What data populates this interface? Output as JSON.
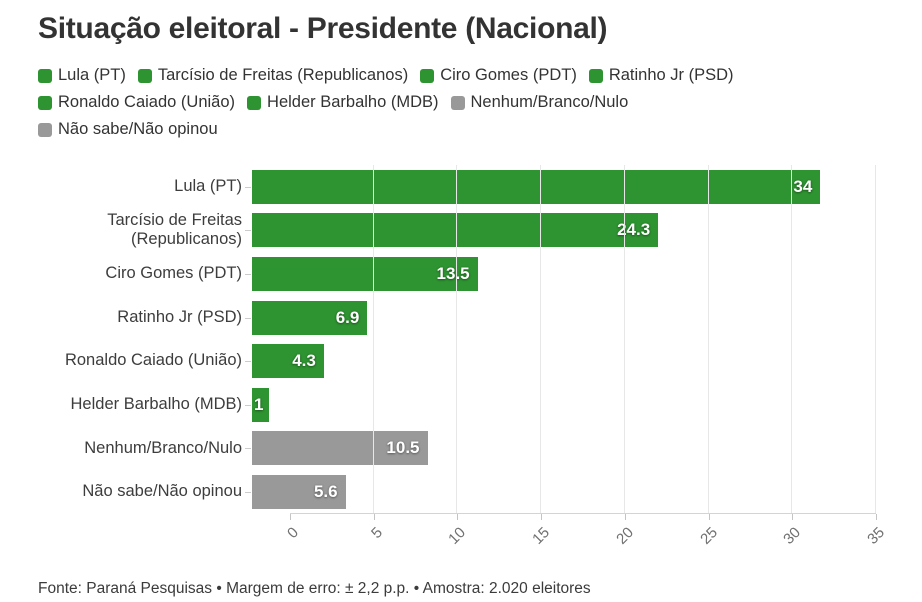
{
  "title": "Situação eleitoral - Presidente (Nacional)",
  "footer": "Fonte: Paraná Pesquisas • Margem de erro: ± 2,2 p.p. • Amostra: 2.020 eleitores",
  "colors": {
    "green": "#2e9331",
    "gray": "#999999"
  },
  "legend_rows": [
    [
      {
        "label": "Lula (PT)",
        "color": "green"
      },
      {
        "label": "Tarcísio de Freitas (Republicanos)",
        "color": "green"
      },
      {
        "label": "Ciro Gomes (PDT)",
        "color": "green"
      },
      {
        "label": "Ratinho Jr (PSD)",
        "color": "green"
      }
    ],
    [
      {
        "label": "Ronaldo Caiado (União)",
        "color": "green"
      },
      {
        "label": "Helder Barbalho (MDB)",
        "color": "green"
      },
      {
        "label": "Nenhum/Branco/Nulo",
        "color": "gray"
      }
    ],
    [
      {
        "label": "Não sabe/Não opinou",
        "color": "gray"
      }
    ]
  ],
  "chart_data": {
    "type": "bar",
    "orientation": "horizontal",
    "title": "Situação eleitoral - Presidente (Nacional)",
    "categories": [
      "Lula (PT)",
      "Tarcísio de Freitas (Republicanos)",
      "Ciro Gomes (PDT)",
      "Ratinho Jr (PSD)",
      "Ronaldo Caiado (União)",
      "Helder Barbalho (MDB)",
      "Nenhum/Branco/Nulo",
      "Não sabe/Não opinou"
    ],
    "values": [
      34,
      24.3,
      13.5,
      6.9,
      4.3,
      1,
      10.5,
      5.6
    ],
    "value_labels": [
      "34",
      "24.3",
      "13.5",
      "6.9",
      "4.3",
      "1",
      "10.5",
      "5.6"
    ],
    "bar_colors": [
      "green",
      "green",
      "green",
      "green",
      "green",
      "green",
      "gray",
      "gray"
    ],
    "xlim": [
      0,
      35
    ],
    "xticks": [
      0,
      5,
      10,
      15,
      20,
      25,
      30,
      35
    ],
    "grid": "vertical",
    "legend_position": "top"
  }
}
